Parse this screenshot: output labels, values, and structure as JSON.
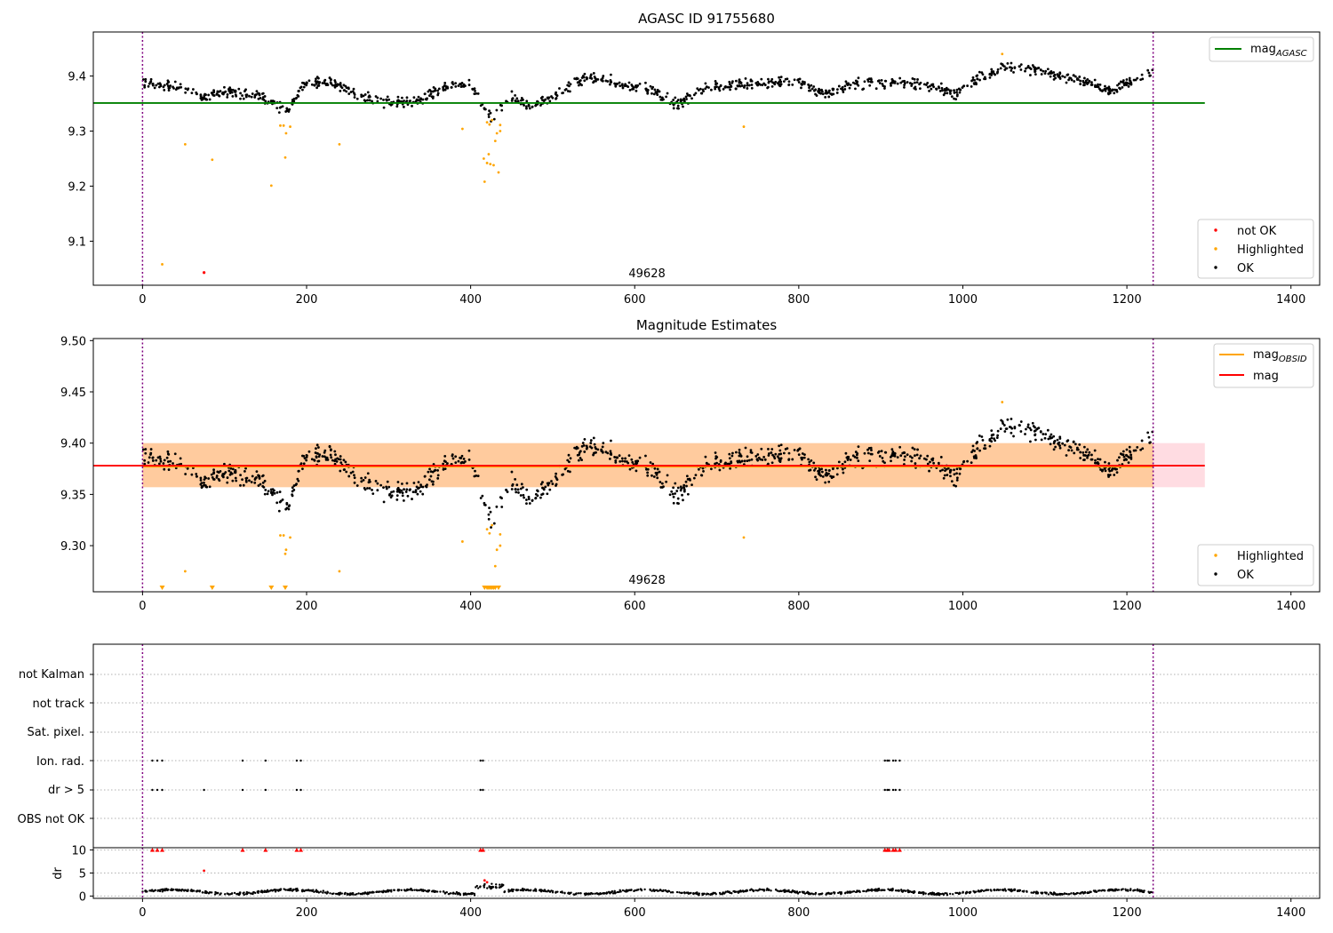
{
  "chart_data": [
    {
      "type": "scatter",
      "title": "AGASC ID 91755680",
      "xlim": [
        -60,
        1435
      ],
      "ylim": [
        9.02,
        9.48
      ],
      "xticks": [
        0,
        200,
        400,
        600,
        800,
        1000,
        1200,
        1400
      ],
      "yticks": [
        9.1,
        9.2,
        9.3,
        9.4
      ],
      "obsid_label": "49628",
      "obsid_label_x": 615,
      "vlines": [
        0,
        1232
      ],
      "hlines": [
        {
          "name": "mag_AGASC",
          "value": 9.351,
          "x": [
            -60,
            1295
          ],
          "color": "#008000"
        }
      ],
      "legend_lines": {
        "placement": "top-right",
        "entries": [
          {
            "name": "mag",
            "sub": "AGASC",
            "color": "#008000"
          }
        ]
      },
      "legend_points": {
        "placement": "bottom-right",
        "entries": [
          {
            "name": "not OK",
            "color": "#ff0000"
          },
          {
            "name": "Highlighted",
            "color": "#ffa500"
          },
          {
            "name": "OK",
            "color": "#000000"
          }
        ]
      },
      "highlighted": [
        [
          24,
          9.058
        ],
        [
          52,
          9.276
        ],
        [
          85,
          9.248
        ],
        [
          157,
          9.201
        ],
        [
          168,
          9.31
        ],
        [
          172,
          9.31
        ],
        [
          175,
          9.296
        ],
        [
          174,
          9.252
        ],
        [
          180,
          9.308
        ],
        [
          240,
          9.276
        ],
        [
          390,
          9.304
        ],
        [
          417,
          9.208
        ],
        [
          416,
          9.25
        ],
        [
          420,
          9.242
        ],
        [
          422,
          9.258
        ],
        [
          424,
          9.24
        ],
        [
          428,
          9.238
        ],
        [
          420,
          9.316
        ],
        [
          423,
          9.312
        ],
        [
          426,
          9.32
        ],
        [
          430,
          9.282
        ],
        [
          432,
          9.296
        ],
        [
          434,
          9.225
        ],
        [
          436,
          9.311
        ],
        [
          436,
          9.3
        ],
        [
          733,
          9.308
        ],
        [
          1048,
          9.44
        ]
      ],
      "not_ok": [
        [
          75,
          9.043
        ]
      ]
    },
    {
      "type": "scatter",
      "title": "Magnitude Estimates",
      "xlim": [
        -60,
        1435
      ],
      "ylim": [
        9.255,
        9.502
      ],
      "xticks": [
        0,
        200,
        400,
        600,
        800,
        1000,
        1200,
        1400
      ],
      "yticks": [
        9.3,
        9.35,
        9.4,
        9.45,
        9.5
      ],
      "ytick_labels": [
        "9.30",
        "9.35",
        "9.40",
        "9.45",
        "9.50"
      ],
      "obsid_label": "49628",
      "obsid_label_x": 615,
      "vlines": [
        0,
        1232
      ],
      "bands": [
        {
          "y": [
            9.357,
            9.4
          ],
          "x": [
            0,
            1295
          ],
          "color": "#ffc0cb",
          "opacity": 0.55
        },
        {
          "y": [
            9.357,
            9.4
          ],
          "x": [
            0,
            1232
          ],
          "color": "#ffa500",
          "opacity": 0.3
        }
      ],
      "hlines": [
        {
          "name": "mag_OBSID",
          "value": 9.377,
          "x": [
            0,
            1232
          ],
          "color": "#ffa500"
        },
        {
          "name": "mag",
          "value": 9.378,
          "x": [
            -60,
            1295
          ],
          "color": "#ff0000"
        }
      ],
      "legend_lines": {
        "placement": "top-right",
        "entries": [
          {
            "name": "mag",
            "sub": "OBSID",
            "color": "#ffa500"
          },
          {
            "name": "mag",
            "sub": "",
            "color": "#ff0000"
          }
        ]
      },
      "legend_points": {
        "placement": "bottom-right",
        "entries": [
          {
            "name": "Highlighted",
            "color": "#ffa500"
          },
          {
            "name": "OK",
            "color": "#000000"
          }
        ]
      },
      "highlighted": [
        [
          52,
          9.275
        ],
        [
          168,
          9.31
        ],
        [
          172,
          9.31
        ],
        [
          175,
          9.296
        ],
        [
          174,
          9.292
        ],
        [
          180,
          9.308
        ],
        [
          240,
          9.275
        ],
        [
          390,
          9.304
        ],
        [
          420,
          9.316
        ],
        [
          423,
          9.312
        ],
        [
          426,
          9.32
        ],
        [
          430,
          9.28
        ],
        [
          432,
          9.296
        ],
        [
          436,
          9.311
        ],
        [
          436,
          9.3
        ],
        [
          733,
          9.308
        ],
        [
          1048,
          9.44
        ]
      ],
      "below_markers": [
        24,
        85,
        157,
        174,
        417,
        420,
        422,
        424,
        426,
        428,
        430,
        434
      ]
    },
    {
      "type": "scatter",
      "title": "",
      "xlim": [
        -60,
        1435
      ],
      "xticks": [
        0,
        200,
        400,
        600,
        800,
        1000,
        1200,
        1400
      ],
      "flag_rows": [
        "not Kalman",
        "not track",
        "Sat. pixel.",
        "Ion. rad.",
        "dr > 5",
        "OBS not OK"
      ],
      "flag_points": {
        "Ion. rad.": [
          12,
          18,
          24,
          122,
          150,
          188,
          193,
          412,
          415,
          905,
          908,
          910,
          915,
          918,
          923
        ],
        "dr > 5": [
          12,
          18,
          24,
          75,
          122,
          150,
          188,
          193,
          412,
          415,
          905,
          908,
          910,
          915,
          918,
          923
        ]
      },
      "dr_ylabel": "dr",
      "dr_ylim": [
        -0.5,
        10.5
      ],
      "dr_yticks": [
        0,
        5,
        10
      ],
      "dr_clip_points": [
        12,
        18,
        24,
        122,
        150,
        188,
        193,
        412,
        415,
        905,
        908,
        910,
        915,
        918,
        923
      ],
      "dr_red_points": [
        [
          75,
          5.5
        ],
        [
          417,
          3.4
        ],
        [
          420,
          3.0
        ]
      ],
      "vlines": [
        0,
        1232
      ]
    }
  ]
}
